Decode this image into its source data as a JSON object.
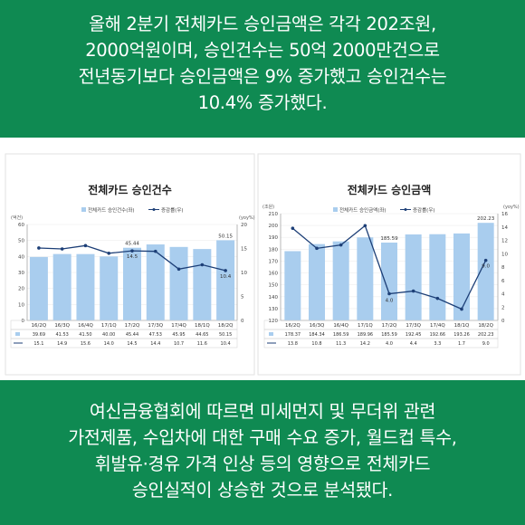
{
  "header": {
    "lines": [
      "올해 2분기 전체카드 승인금액은 각각 202조원,",
      "2000억원이며, 승인건수는 50억 2000만건으로",
      "전년동기보다 승인금액은 9% 증가했고 승인건수는",
      "10.4% 증가했다."
    ]
  },
  "footer": {
    "lines": [
      "여신금융협회에 따르면 미세먼지 및 무더위 관련",
      "가전제품, 수입차에 대한 구매 수요 증가, 월드컵 특수,",
      "휘발유·경유 가격 인상 등의 영향으로 전체카드",
      "승인실적이 상승한 것으로 분석됐다."
    ]
  },
  "colors": {
    "band": "#0f8a52",
    "bar": "#a9cdee",
    "line": "#1d3f77"
  },
  "chart_data": [
    {
      "type": "bar",
      "title": "전체카드 승인건수",
      "left_unit": "(억건)",
      "right_unit": "(yoy%)",
      "categories": [
        "16/2Q",
        "16/3Q",
        "16/4Q",
        "17/1Q",
        "17/2Q",
        "17/3Q",
        "17/4Q",
        "18/1Q",
        "18/2Q"
      ],
      "y_left_ticks": [
        "0",
        "10",
        "20",
        "30",
        "40",
        "50",
        "60"
      ],
      "y_right_ticks": [
        "0",
        "5",
        "10",
        "15",
        "20"
      ],
      "ylim_left": [
        0,
        60
      ],
      "ylim_right": [
        0,
        20
      ],
      "series": [
        {
          "name": "전체카드 승인건수(좌)",
          "axis": "left",
          "kind": "bar",
          "values": [
            39.69,
            41.53,
            41.5,
            40.0,
            45.44,
            47.53,
            45.95,
            44.65,
            50.15
          ],
          "labels": [
            "39.69",
            "41.53",
            "41.50",
            "40.00",
            "45.44",
            "47.53",
            "45.95",
            "44.65",
            "50.15"
          ]
        },
        {
          "name": "증감률(우)",
          "axis": "right",
          "kind": "line",
          "values": [
            15.1,
            14.9,
            15.6,
            14.0,
            14.5,
            14.4,
            10.7,
            11.6,
            10.4
          ],
          "labels": [
            "15.1",
            "14.9",
            "15.6",
            "14.0",
            "14.5",
            "14.4",
            "10.7",
            "11.6",
            "10.4"
          ]
        }
      ],
      "annotations": [
        {
          "series": 0,
          "index": 4,
          "text": "45.44"
        },
        {
          "series": 0,
          "index": 8,
          "text": "50.15"
        },
        {
          "series": 1,
          "index": 4,
          "text": "14.5"
        },
        {
          "series": 1,
          "index": 8,
          "text": "10.4"
        }
      ]
    },
    {
      "type": "bar",
      "title": "전체카드 승인금액",
      "left_unit": "(조원)",
      "right_unit": "(yoy%)",
      "categories": [
        "16/2Q",
        "16/3Q",
        "16/4Q",
        "17/1Q",
        "17/2Q",
        "17/3Q",
        "17/4Q",
        "18/1Q",
        "18/2Q"
      ],
      "y_left_ticks": [
        "120",
        "130",
        "140",
        "150",
        "160",
        "170",
        "180",
        "190",
        "200",
        "210"
      ],
      "y_right_ticks": [
        "0",
        "2",
        "4",
        "6",
        "8",
        "10",
        "12",
        "14",
        "16"
      ],
      "ylim_left": [
        120,
        210
      ],
      "ylim_right": [
        0,
        16
      ],
      "series": [
        {
          "name": "전체카드 승인금액(좌)",
          "axis": "left",
          "kind": "bar",
          "values": [
            178.37,
            184.34,
            186.59,
            189.96,
            185.59,
            192.45,
            192.66,
            193.26,
            202.23
          ],
          "labels": [
            "178.37",
            "184.34",
            "186.59",
            "189.96",
            "185.59",
            "192.45",
            "192.66",
            "193.26",
            "202.23"
          ]
        },
        {
          "name": "증감률(우)",
          "axis": "right",
          "kind": "line",
          "values": [
            13.8,
            10.8,
            11.3,
            14.2,
            4.0,
            4.4,
            3.3,
            1.7,
            9.0
          ],
          "labels": [
            "13.8",
            "10.8",
            "11.3",
            "14.2",
            "4.0",
            "4.4",
            "3.3",
            "1.7",
            "9.0"
          ]
        }
      ],
      "annotations": [
        {
          "series": 0,
          "index": 4,
          "text": "185.59"
        },
        {
          "series": 0,
          "index": 8,
          "text": "202.23"
        },
        {
          "series": 1,
          "index": 4,
          "text": "4.0"
        },
        {
          "series": 1,
          "index": 8,
          "text": "9.0"
        }
      ]
    }
  ]
}
